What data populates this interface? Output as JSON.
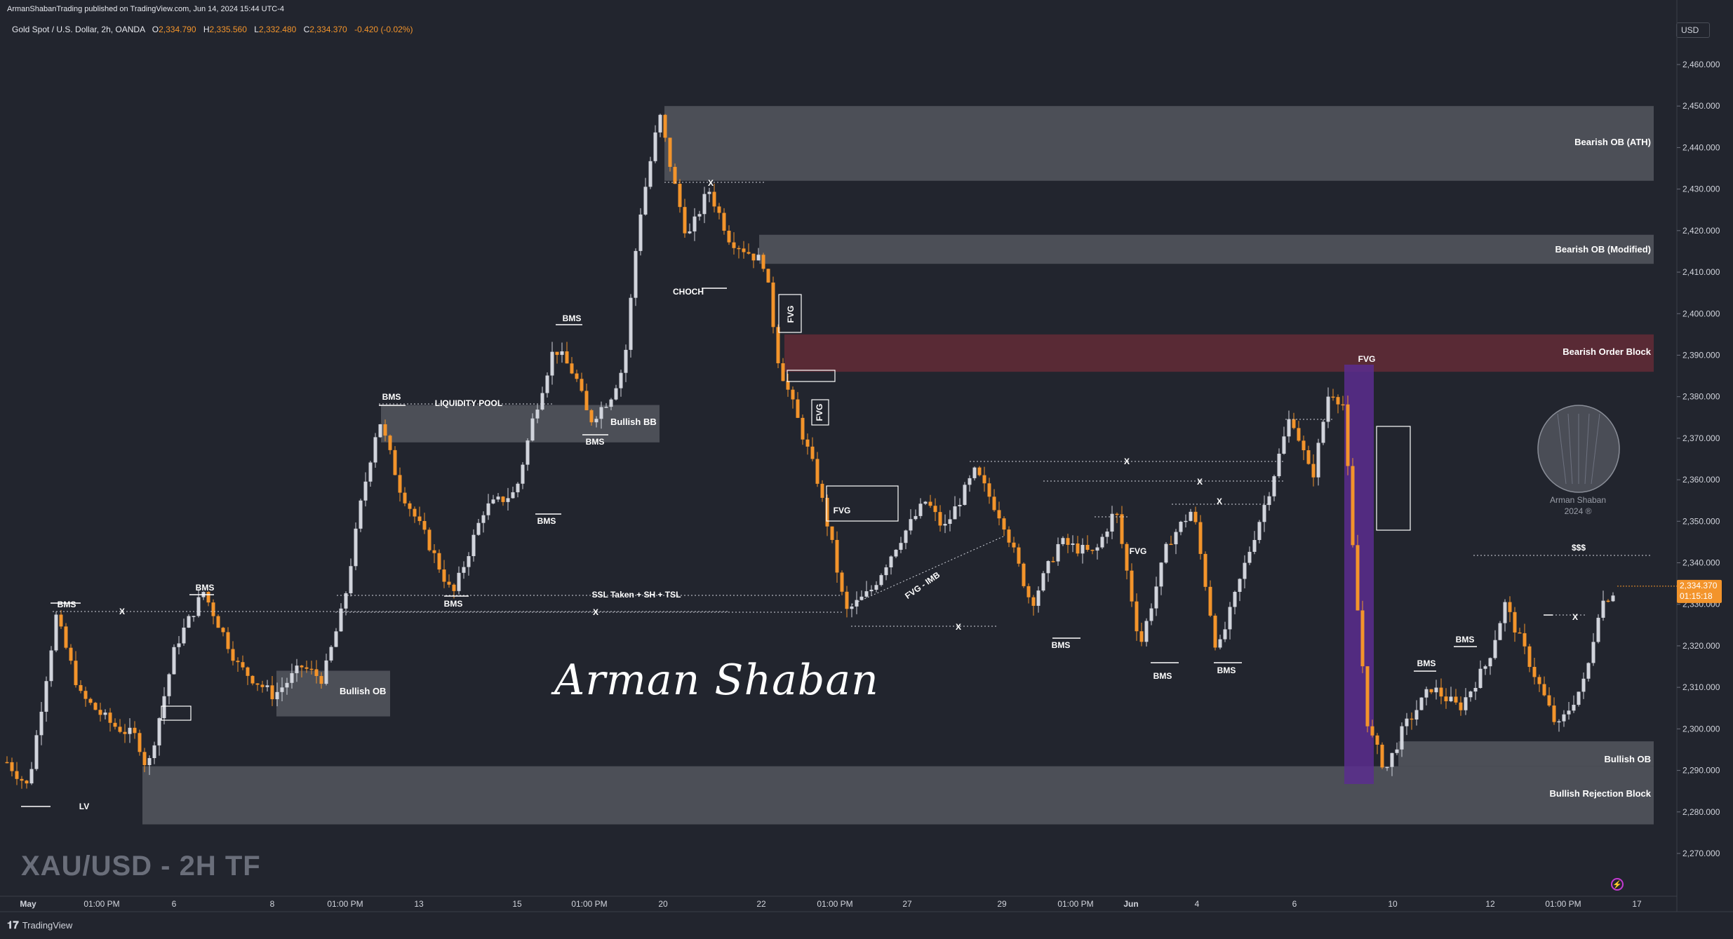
{
  "header": {
    "credit": "ArmanShabanTrading published on TradingView.com, Jun 14, 2024 15:44 UTC-4",
    "symbol": "Gold Spot / U.S. Dollar, 2h, OANDA",
    "open_label": "O",
    "open": "2,334.790",
    "high_label": "H",
    "high": "2,335.560",
    "low_label": "L",
    "low": "2,332.480",
    "close_label": "C",
    "close": "2,334.370",
    "change": "-0.420 (-0.02%)"
  },
  "currency": "USD",
  "watermark": "XAU/USD - 2H TF",
  "signature": "Arman Shaban",
  "brand": {
    "name": "Arman Shaban",
    "year": "2024 ®"
  },
  "footer": {
    "logo": "𝟏𝟕",
    "text": "TradingView"
  },
  "colors": {
    "background": "#22252e",
    "bull": "#d1d4dc",
    "bear": "#f3942b",
    "zone": "#5b5e66",
    "bearish_ob": "#5d2a36",
    "lv": "#5b2d8e",
    "price_tag": "#f3942b"
  },
  "chart_data": {
    "type": "candlestick",
    "ylim": [
      2268,
      2467
    ],
    "y_ticks": [
      "2,270.000",
      "2,280.000",
      "2,290.000",
      "2,300.000",
      "2,310.000",
      "2,320.000",
      "2,330.000",
      "2,340.000",
      "2,350.000",
      "2,360.000",
      "2,370.000",
      "2,380.000",
      "2,390.000",
      "2,400.000",
      "2,410.000",
      "2,420.000",
      "2,430.000",
      "2,440.000",
      "2,450.000",
      "2,460.000"
    ],
    "x_ticks": [
      "May",
      "01:00 PM",
      "6",
      "8",
      "01:00 PM",
      "13",
      "15",
      "01:00 PM",
      "20",
      "22",
      "01:00 PM",
      "27",
      "29",
      "01:00 PM",
      "Jun",
      "4",
      "6",
      "10",
      "12",
      "01:00 PM",
      "17"
    ],
    "last_price": "2,334.370",
    "countdown": "01:15:18",
    "path": [
      {
        "x": 10,
        "y": 2292
      },
      {
        "x": 40,
        "y": 2286
      },
      {
        "x": 80,
        "y": 2327
      },
      {
        "x": 115,
        "y": 2308
      },
      {
        "x": 160,
        "y": 2301
      },
      {
        "x": 195,
        "y": 2298
      },
      {
        "x": 210,
        "y": 2290
      },
      {
        "x": 250,
        "y": 2320
      },
      {
        "x": 290,
        "y": 2333
      },
      {
        "x": 340,
        "y": 2315
      },
      {
        "x": 390,
        "y": 2308
      },
      {
        "x": 430,
        "y": 2315
      },
      {
        "x": 460,
        "y": 2312
      },
      {
        "x": 490,
        "y": 2330
      },
      {
        "x": 515,
        "y": 2355
      },
      {
        "x": 540,
        "y": 2375
      },
      {
        "x": 570,
        "y": 2358
      },
      {
        "x": 610,
        "y": 2345
      },
      {
        "x": 645,
        "y": 2332
      },
      {
        "x": 690,
        "y": 2353
      },
      {
        "x": 735,
        "y": 2357
      },
      {
        "x": 760,
        "y": 2375
      },
      {
        "x": 790,
        "y": 2392
      },
      {
        "x": 820,
        "y": 2385
      },
      {
        "x": 840,
        "y": 2374
      },
      {
        "x": 870,
        "y": 2380
      },
      {
        "x": 890,
        "y": 2388
      },
      {
        "x": 910,
        "y": 2422
      },
      {
        "x": 940,
        "y": 2448
      },
      {
        "x": 960,
        "y": 2432
      },
      {
        "x": 980,
        "y": 2418
      },
      {
        "x": 1010,
        "y": 2430
      },
      {
        "x": 1040,
        "y": 2418
      },
      {
        "x": 1090,
        "y": 2412
      },
      {
        "x": 1110,
        "y": 2388
      },
      {
        "x": 1130,
        "y": 2378
      },
      {
        "x": 1165,
        "y": 2360
      },
      {
        "x": 1185,
        "y": 2345
      },
      {
        "x": 1205,
        "y": 2328
      },
      {
        "x": 1240,
        "y": 2333
      },
      {
        "x": 1280,
        "y": 2345
      },
      {
        "x": 1320,
        "y": 2355
      },
      {
        "x": 1345,
        "y": 2348
      },
      {
        "x": 1390,
        "y": 2362
      },
      {
        "x": 1430,
        "y": 2350
      },
      {
        "x": 1470,
        "y": 2330
      },
      {
        "x": 1510,
        "y": 2345
      },
      {
        "x": 1560,
        "y": 2342
      },
      {
        "x": 1590,
        "y": 2353
      },
      {
        "x": 1625,
        "y": 2320
      },
      {
        "x": 1665,
        "y": 2345
      },
      {
        "x": 1700,
        "y": 2353
      },
      {
        "x": 1735,
        "y": 2318
      },
      {
        "x": 1775,
        "y": 2340
      },
      {
        "x": 1810,
        "y": 2358
      },
      {
        "x": 1840,
        "y": 2376
      },
      {
        "x": 1870,
        "y": 2360
      },
      {
        "x": 1895,
        "y": 2382
      },
      {
        "x": 1915,
        "y": 2378
      },
      {
        "x": 1930,
        "y": 2338
      },
      {
        "x": 1950,
        "y": 2300
      },
      {
        "x": 1975,
        "y": 2290
      },
      {
        "x": 2000,
        "y": 2300
      },
      {
        "x": 2040,
        "y": 2310
      },
      {
        "x": 2080,
        "y": 2305
      },
      {
        "x": 2120,
        "y": 2316
      },
      {
        "x": 2145,
        "y": 2330
      },
      {
        "x": 2175,
        "y": 2318
      },
      {
        "x": 2220,
        "y": 2300
      },
      {
        "x": 2260,
        "y": 2312
      },
      {
        "x": 2280,
        "y": 2330
      },
      {
        "x": 2305,
        "y": 2334
      }
    ],
    "zones": [
      {
        "label": "Bearish OB (ATH)",
        "x1": 947,
        "x2": 2357,
        "y1": 2450,
        "y2": 2432,
        "color": "zone"
      },
      {
        "label": "Bearish OB (Modified)",
        "x1": 1082,
        "x2": 2357,
        "y1": 2419,
        "y2": 2412,
        "color": "zone"
      },
      {
        "label": "Bearish Order Block",
        "x1": 1118,
        "x2": 2357,
        "y1": 2395,
        "y2": 2386,
        "color": "bearish_ob"
      },
      {
        "label": "Bullish BB",
        "x1": 543,
        "x2": 940,
        "y1": 2378,
        "y2": 2369,
        "color": "zone"
      },
      {
        "label": "Bullish OB",
        "x1": 394,
        "x2": 556,
        "y1": 2314,
        "y2": 2303,
        "color": "zone"
      },
      {
        "label": "Bullish OB",
        "x1": 1993,
        "x2": 2357,
        "y1": 2297,
        "y2": 2291,
        "color": "zone"
      },
      {
        "label": "Bullish Rejection Block",
        "x1": 203,
        "x2": 2357,
        "y1": 2291,
        "y2": 2277,
        "color": "zone"
      }
    ],
    "annotations": [
      "BMS",
      "BMS",
      "BMS",
      "BMS",
      "BMS",
      "BMS",
      "BMS",
      "BMS",
      "BMS",
      "BMS",
      "BMS",
      "BMS",
      "CHOCH",
      "FVG",
      "FVG",
      "FVG",
      "FVG",
      "FVG - IMB",
      "FVG",
      "$$$",
      "LV",
      "LIQUIDITY POOL",
      "SSL Taken + SH + TSL",
      "X",
      "X",
      "X",
      "X",
      "X",
      "X",
      "X",
      "X",
      "X",
      "X"
    ]
  }
}
